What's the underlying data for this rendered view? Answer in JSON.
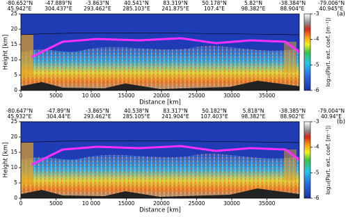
{
  "chart_data": {
    "type": "curtain",
    "x_label": "Distance [km]",
    "y_label": "Height [km]",
    "colorbar_label": "log₁₀(Part. ext. coef. [m⁻¹])",
    "xlim": [
      0,
      39600
    ],
    "xticks": [
      0,
      5000,
      {
        "value": 10000,
        "label": "10 000"
      },
      {
        "value": 15000,
        "label": "15000"
      },
      {
        "value": 20000,
        "label": "20000"
      },
      {
        "value": 25000,
        "label": "25000"
      },
      {
        "value": 30000,
        "label": "30000"
      },
      {
        "value": 35000,
        "label": "35000"
      }
    ],
    "ylim": [
      0,
      25
    ],
    "yticks": [
      0,
      5,
      10,
      15,
      20,
      25
    ],
    "clim": [
      -6,
      -3
    ],
    "cticks": [
      -3,
      -4,
      -5,
      -6
    ],
    "panels": [
      {
        "label": "(a)",
        "positions": [
          {
            "lat": "-80.652°N",
            "lon": "45.942°E"
          },
          {
            "lat": "-47.889°N",
            "lon": "304.437°E"
          },
          {
            "lat": "-3.863°N",
            "lon": "293.462°E"
          },
          {
            "lat": "40.541°N",
            "lon": "285.103°E"
          },
          {
            "lat": "83.319°N",
            "lon": "241.875°E"
          },
          {
            "lat": "50.178°N",
            "lon": "107.4°E"
          },
          {
            "lat": "5.82°N",
            "lon": "98.382°E"
          },
          {
            "lat": "-38.384°N",
            "lon": "88.904°E"
          },
          {
            "lat": "-79.006°N",
            "lon": "40.945°E"
          }
        ]
      },
      {
        "label": "(b)",
        "positions": [
          {
            "lat": "-80.647°N",
            "lon": "45.932°E"
          },
          {
            "lat": "-47.89°N",
            "lon": "304.44°E"
          },
          {
            "lat": "-3.865°N",
            "lon": "293.462°E"
          },
          {
            "lat": "40.538°N",
            "lon": "285.105°E"
          },
          {
            "lat": "83.317°N",
            "lon": "241.904°E"
          },
          {
            "lat": "50.182°N",
            "lon": "107.403°E"
          },
          {
            "lat": "5.818°N",
            "lon": "98.382°E"
          },
          {
            "lat": "-38.385°N",
            "lon": "88.902°E"
          },
          {
            "lat": "-79.004°N",
            "lon": "40.94°E"
          }
        ]
      }
    ]
  }
}
